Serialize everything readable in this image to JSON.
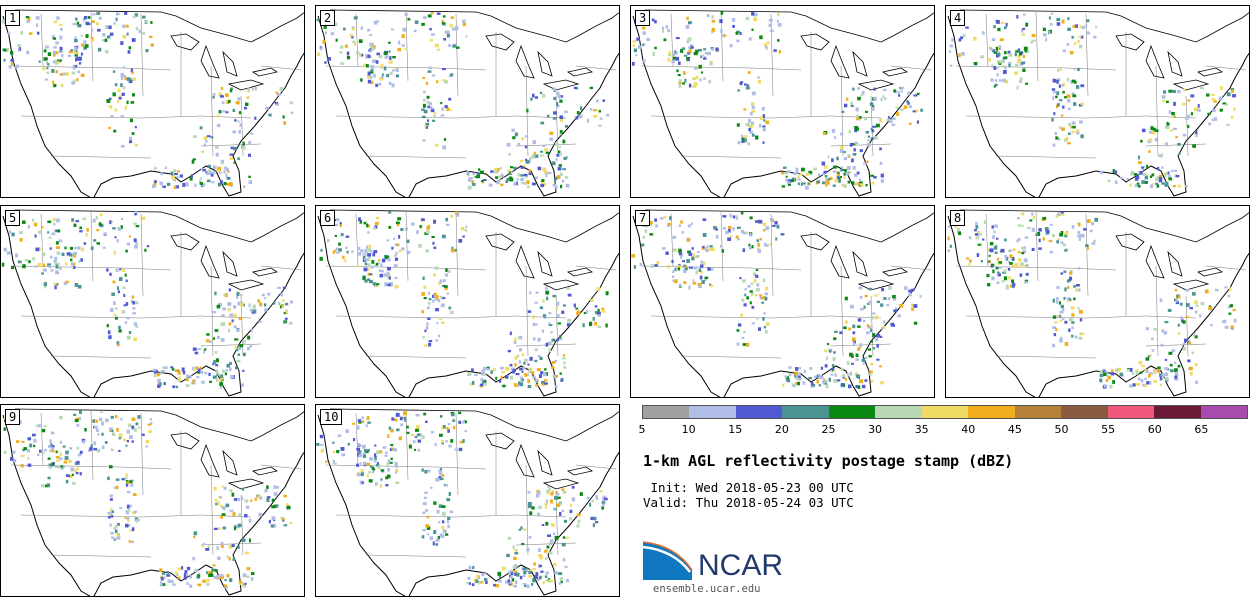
{
  "panels": [
    {
      "label": "1"
    },
    {
      "label": "2"
    },
    {
      "label": "3"
    },
    {
      "label": "4"
    },
    {
      "label": "5"
    },
    {
      "label": "6"
    },
    {
      "label": "7"
    },
    {
      "label": "8"
    },
    {
      "label": "9"
    },
    {
      "label": "10"
    }
  ],
  "colorbar": {
    "ticks": [
      "5",
      "10",
      "15",
      "20",
      "25",
      "30",
      "35",
      "40",
      "45",
      "50",
      "55",
      "60",
      "65"
    ],
    "colors": [
      "#a0a0a0",
      "#b0bde6",
      "#5059d2",
      "#4c9394",
      "#0a8a12",
      "#b9d9b5",
      "#f0dc64",
      "#f0ae1c",
      "#b5813a",
      "#8a5b3e",
      "#f0587c",
      "#6a1a35",
      "#a94aae"
    ]
  },
  "title": "1-km AGL reflectivity postage stamp (dBZ)",
  "init_line": " Init: Wed 2018-05-23 00 UTC",
  "valid_line": "Valid: Thu 2018-05-24 03 UTC",
  "logo_text": "NCAR",
  "url": "ensemble.ucar.edu"
}
